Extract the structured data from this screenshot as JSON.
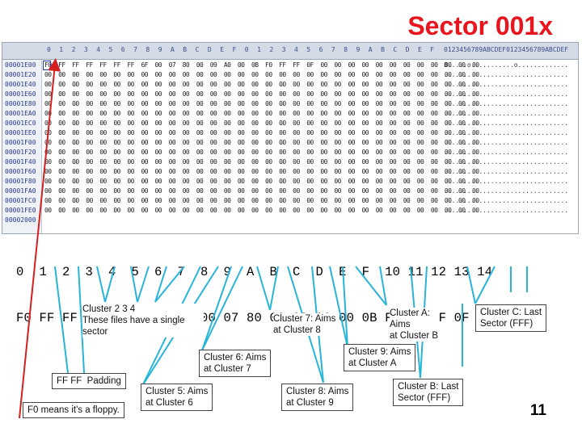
{
  "title": "Sector 001x",
  "hex_header": [
    "0",
    "1",
    "2",
    "3",
    "4",
    "5",
    "6",
    "7",
    "8",
    "9",
    "A",
    "B",
    "C",
    "D",
    "E",
    "F",
    "0",
    "1",
    "2",
    "3",
    "4",
    "5",
    "6",
    "7",
    "8",
    "9",
    "A",
    "B",
    "C",
    "D",
    "E",
    "F"
  ],
  "ascii_header": "0123456789ABCDEF0123456789ABCDEF",
  "rows": [
    {
      "off": "00001E00",
      "hex": "F0 FF FF FF FF FF FF 6F 00 07 80 00 09 A0 00 0B F0 FF FF 0F 00 00 00 00 00 00 00 00 00 00 00 00",
      "asc": "8.....o...........o............."
    },
    {
      "off": "00001E20",
      "hex": "00 00 00 00 00 00 00 00 00 00 00 00 00 00 00 00 00 00 00 00 00 00 00 00 00 00 00 00 00 00 00 00",
      "asc": "................................"
    },
    {
      "off": "00001E40",
      "hex": "00 00 00 00 00 00 00 00 00 00 00 00 00 00 00 00 00 00 00 00 00 00 00 00 00 00 00 00 00 00 00 00",
      "asc": "................................"
    },
    {
      "off": "00001E60",
      "hex": "00 00 00 00 00 00 00 00 00 00 00 00 00 00 00 00 00 00 00 00 00 00 00 00 00 00 00 00 00 00 00 00",
      "asc": "................................"
    },
    {
      "off": "00001E80",
      "hex": "00 00 00 00 00 00 00 00 00 00 00 00 00 00 00 00 00 00 00 00 00 00 00 00 00 00 00 00 00 00 00 00",
      "asc": "................................"
    },
    {
      "off": "00001EA0",
      "hex": "00 00 00 00 00 00 00 00 00 00 00 00 00 00 00 00 00 00 00 00 00 00 00 00 00 00 00 00 00 00 00 00",
      "asc": "................................"
    },
    {
      "off": "00001EC0",
      "hex": "00 00 00 00 00 00 00 00 00 00 00 00 00 00 00 00 00 00 00 00 00 00 00 00 00 00 00 00 00 00 00 00",
      "asc": "................................"
    },
    {
      "off": "00001EE0",
      "hex": "00 00 00 00 00 00 00 00 00 00 00 00 00 00 00 00 00 00 00 00 00 00 00 00 00 00 00 00 00 00 00 00",
      "asc": "................................"
    },
    {
      "off": "00001F00",
      "hex": "00 00 00 00 00 00 00 00 00 00 00 00 00 00 00 00 00 00 00 00 00 00 00 00 00 00 00 00 00 00 00 00",
      "asc": "................................"
    },
    {
      "off": "00001F20",
      "hex": "00 00 00 00 00 00 00 00 00 00 00 00 00 00 00 00 00 00 00 00 00 00 00 00 00 00 00 00 00 00 00 00",
      "asc": "................................"
    },
    {
      "off": "00001F40",
      "hex": "00 00 00 00 00 00 00 00 00 00 00 00 00 00 00 00 00 00 00 00 00 00 00 00 00 00 00 00 00 00 00 00",
      "asc": "................................"
    },
    {
      "off": "00001F60",
      "hex": "00 00 00 00 00 00 00 00 00 00 00 00 00 00 00 00 00 00 00 00 00 00 00 00 00 00 00 00 00 00 00 00",
      "asc": "................................"
    },
    {
      "off": "00001F80",
      "hex": "00 00 00 00 00 00 00 00 00 00 00 00 00 00 00 00 00 00 00 00 00 00 00 00 00 00 00 00 00 00 00 00",
      "asc": "................................"
    },
    {
      "off": "00001FA0",
      "hex": "00 00 00 00 00 00 00 00 00 00 00 00 00 00 00 00 00 00 00 00 00 00 00 00 00 00 00 00 00 00 00 00",
      "asc": "................................"
    },
    {
      "off": "00001FC0",
      "hex": "00 00 00 00 00 00 00 00 00 00 00 00 00 00 00 00 00 00 00 00 00 00 00 00 00 00 00 00 00 00 00 00",
      "asc": "................................"
    },
    {
      "off": "00001FE0",
      "hex": "00 00 00 00 00 00 00 00 00 00 00 00 00 00 00 00 00 00 00 00 00 00 00 00 00 00 00 00 00 00 00 00",
      "asc": "................................"
    },
    {
      "off": "00002000",
      "hex": "",
      "asc": ""
    }
  ],
  "ruler_index": "0  1  2  3  4  5  6  7  8  9  A  B  C  D  E  F  10 11 12 13 14",
  "ruler_bytes": "F0 FF FF FF FF FF FF 6F 00 07 80 00 09 A0 00 0B F0 FF FF 0F 00",
  "annotations": {
    "cluster234": "Cluster 2   3   4\nThese files have a single\nsector",
    "cluster7": "Cluster 7: Aims\nat Cluster 8",
    "clusterA": "Cluster A:\nAims\nat Cluster B",
    "clusterC": "Cluster C: Last\nSector (FFF)",
    "cluster6": "Cluster 6: Aims\nat Cluster 7",
    "cluster9": "Cluster 9: Aims\nat Cluster A",
    "padding": "FF FF  Padding",
    "cluster5": "Cluster 5:  Aims\nat Cluster 6",
    "cluster8": "Cluster 8: Aims\nat Cluster 9",
    "clusterB": "Cluster B: Last\nSector (FFF)",
    "floppy": "F0 means it's a floppy."
  },
  "page_number": "11",
  "colors": {
    "title": "#e8141e",
    "arrow_red": "#d42020",
    "arrow_blue": "#1f86d6",
    "arrow_cyan": "#27b4d8"
  }
}
